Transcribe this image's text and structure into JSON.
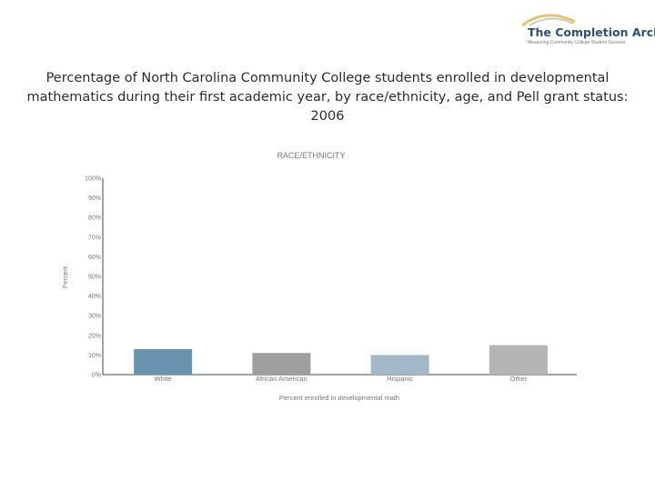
{
  "logo": {
    "title": "The Completion Arch",
    "tagline": "Measuring Community College Student Success"
  },
  "page": {
    "title": "Percentage of North Carolina Community College students enrolled in developmental mathematics during their first academic year, by race/ethnicity, age, and Pell grant status: 2006"
  },
  "colors": {
    "white": "#6a93b0",
    "african_american": "#9e9e9e",
    "hispanic": "#a3b8c9",
    "other": "#b5b5b5",
    "axis": "#444444",
    "logo_text": "#2a4f7a",
    "logo_arc": "#e4c56a"
  },
  "chart_data": {
    "type": "bar",
    "title": "RACE/ETHNICITY",
    "xlabel": "Percent enrolled in developmental math",
    "ylabel": "Percent",
    "categories": [
      "White",
      "African American",
      "Hispanic",
      "Other"
    ],
    "values": [
      13,
      11,
      10,
      15
    ],
    "ylim": [
      0,
      100
    ],
    "yticks": [
      0,
      10,
      20,
      30,
      40,
      50,
      60,
      70,
      80,
      90,
      100
    ],
    "ytick_labels": [
      "0%",
      "10%",
      "20%",
      "30%",
      "40%",
      "50%",
      "60%",
      "70%",
      "80%",
      "90%",
      "100%"
    ],
    "grid": false,
    "legend": "none"
  }
}
